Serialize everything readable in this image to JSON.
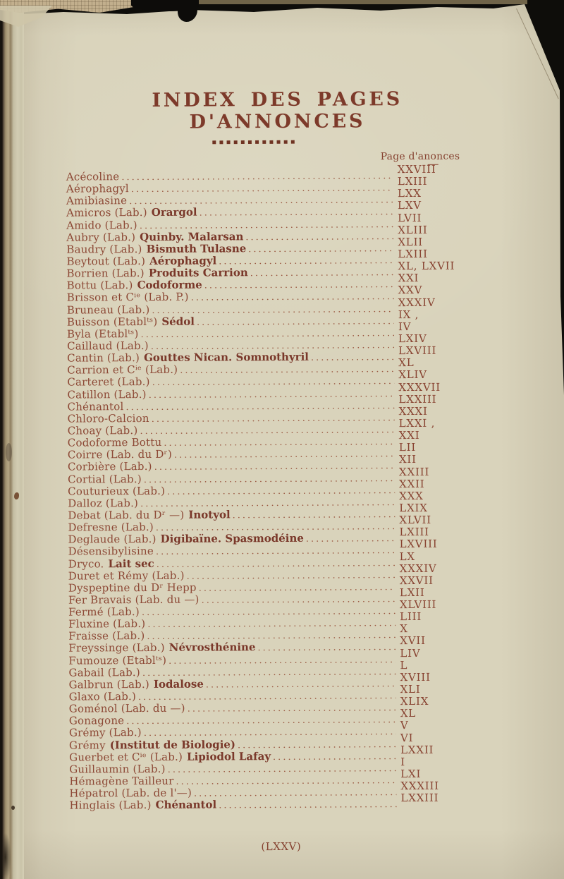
{
  "document": {
    "title": "INDEX DES PAGES D'ANNONCES",
    "ornament": "■■■■■■■■■■■■",
    "column_header": "Page d'anonces",
    "footer_page_number": "(LXXV)"
  },
  "colors": {
    "paper": "#d9d3bb",
    "ink": "#8d4936",
    "ink_bold": "#7a382a",
    "background": "#0e0d0a"
  },
  "entries": [
    {
      "name": "Acécoline",
      "product": "",
      "page": "XXVIII"
    },
    {
      "name": "Aérophagyl",
      "product": "",
      "page": "LXIII"
    },
    {
      "name": "Amibiasine",
      "product": "",
      "page": "LXX"
    },
    {
      "name": "Amicros (Lab.)",
      "product": "Orargol",
      "page": "LXV"
    },
    {
      "name": "Amido (Lab.)",
      "product": "",
      "page": "LVII"
    },
    {
      "name": "Aubry (Lab.)",
      "product": "Quinby. Malarsan",
      "page": "XLIII"
    },
    {
      "name": "Baudry (Lab.)",
      "product": "Bismuth Tulasne",
      "page": "XLII"
    },
    {
      "name": "Beytout (Lab.)",
      "product": "Aérophagyl",
      "page": "LXIII"
    },
    {
      "name": "Borrien (Lab.)",
      "product": "Produits Carrion",
      "page": "XL, LXVII"
    },
    {
      "name": "Bottu (Lab.)",
      "product": "Codoforme",
      "page": "XXI"
    },
    {
      "name": "Brisson et Cⁱᵉ (Lab. P.)",
      "product": "",
      "page": "XXV"
    },
    {
      "name": "Bruneau (Lab.)",
      "product": "",
      "page": "XXXIV"
    },
    {
      "name": "Buisson (Etablᵗˢ)",
      "product": "Sédol",
      "page": "IX ,"
    },
    {
      "name": "Byla (Etablᵗˢ)",
      "product": "",
      "page": "IV"
    },
    {
      "name": "Caillaud (Lab.)",
      "product": "",
      "page": "LXIV"
    },
    {
      "name": "Cantin (Lab.)",
      "product": "Gouttes Nican. Somnothyril",
      "page": "LXVIII"
    },
    {
      "name": "Carrion et Cⁱᵉ (Lab.)",
      "product": "",
      "page": "XL"
    },
    {
      "name": "Carteret (Lab.)",
      "product": "",
      "page": "XLIV"
    },
    {
      "name": "Catillon (Lab.)",
      "product": "",
      "page": "XXXVII"
    },
    {
      "name": "Chénantol",
      "product": "",
      "page": "LXXIII"
    },
    {
      "name": "Chloro-Calcion",
      "product": "",
      "page": "XXXI"
    },
    {
      "name": "Choay (Lab.)",
      "product": "",
      "page": "LXXI ,"
    },
    {
      "name": "Codoforme Bottu",
      "product": "",
      "page": "XXI"
    },
    {
      "name": "Coirre (Lab. du Dʳ)",
      "product": "",
      "page": "LII"
    },
    {
      "name": "Corbière (Lab.)",
      "product": "",
      "page": "XII"
    },
    {
      "name": "Cortial (Lab.)",
      "product": "",
      "page": "XXIII"
    },
    {
      "name": "Couturieux (Lab.)",
      "product": "",
      "page": "XXII"
    },
    {
      "name": "Dalloz (Lab.)",
      "product": "",
      "page": "XXX"
    },
    {
      "name": "Debat (Lab. du Dʳ —)",
      "product": "Inotyol",
      "page": "LXIX"
    },
    {
      "name": "Defresne (Lab.)",
      "product": "",
      "page": "XLVII"
    },
    {
      "name": "Deglaude (Lab.)",
      "product": "Digibaïne. Spasmodéine",
      "page": "LXIII"
    },
    {
      "name": "Désensibylisine",
      "product": "",
      "page": "LXVIII"
    },
    {
      "name": "Dryco.",
      "product": "Lait sec",
      "page": "LX"
    },
    {
      "name": "Duret et Rémy (Lab.)",
      "product": "",
      "page": "XXXIV"
    },
    {
      "name": "Dyspeptine du Dʳ Hepp",
      "product": "",
      "page": "XXVII"
    },
    {
      "name": "Fer Bravais (Lab. du —)",
      "product": "",
      "page": "LXII"
    },
    {
      "name": "Fermé (Lab.)",
      "product": "",
      "page": "XLVIII"
    },
    {
      "name": "Fluxine (Lab.)",
      "product": "",
      "page": "LIII"
    },
    {
      "name": "Fraisse (Lab.)",
      "product": "",
      "page": "X"
    },
    {
      "name": "Freyssinge (Lab.)",
      "product": "Névrosthénine",
      "page": "XVII"
    },
    {
      "name": "Fumouze (Etablᵗˢ)",
      "product": "",
      "page": "LIV"
    },
    {
      "name": "Gabail (Lab.)",
      "product": "",
      "page": "L"
    },
    {
      "name": "Galbrun (Lab.)",
      "product": "Iodalose",
      "page": "XVIII"
    },
    {
      "name": "Glaxo (Lab.)",
      "product": "",
      "page": "XLI"
    },
    {
      "name": "Goménol (Lab. du —)",
      "product": "",
      "page": "XLIX"
    },
    {
      "name": "Gonagone",
      "product": "",
      "page": "XL"
    },
    {
      "name": "Grémy (Lab.)",
      "product": "",
      "page": "V"
    },
    {
      "name": "Grémy",
      "product": "(Institut de Biologie)",
      "page": "VI"
    },
    {
      "name": "Guerbet et Cⁱᵉ (Lab.)",
      "product": "Lipiodol Lafay",
      "page": "LXXII"
    },
    {
      "name": "Guillaumin (Lab.)",
      "product": "",
      "page": "I"
    },
    {
      "name": "Hémagène Tailleur",
      "product": "",
      "page": "LXI"
    },
    {
      "name": "Hépatrol (Lab. de l'—)",
      "product": "",
      "page": "XXXIII"
    },
    {
      "name": "Hinglais (Lab.)",
      "product": "Chénantol",
      "page": "LXXIII"
    }
  ]
}
